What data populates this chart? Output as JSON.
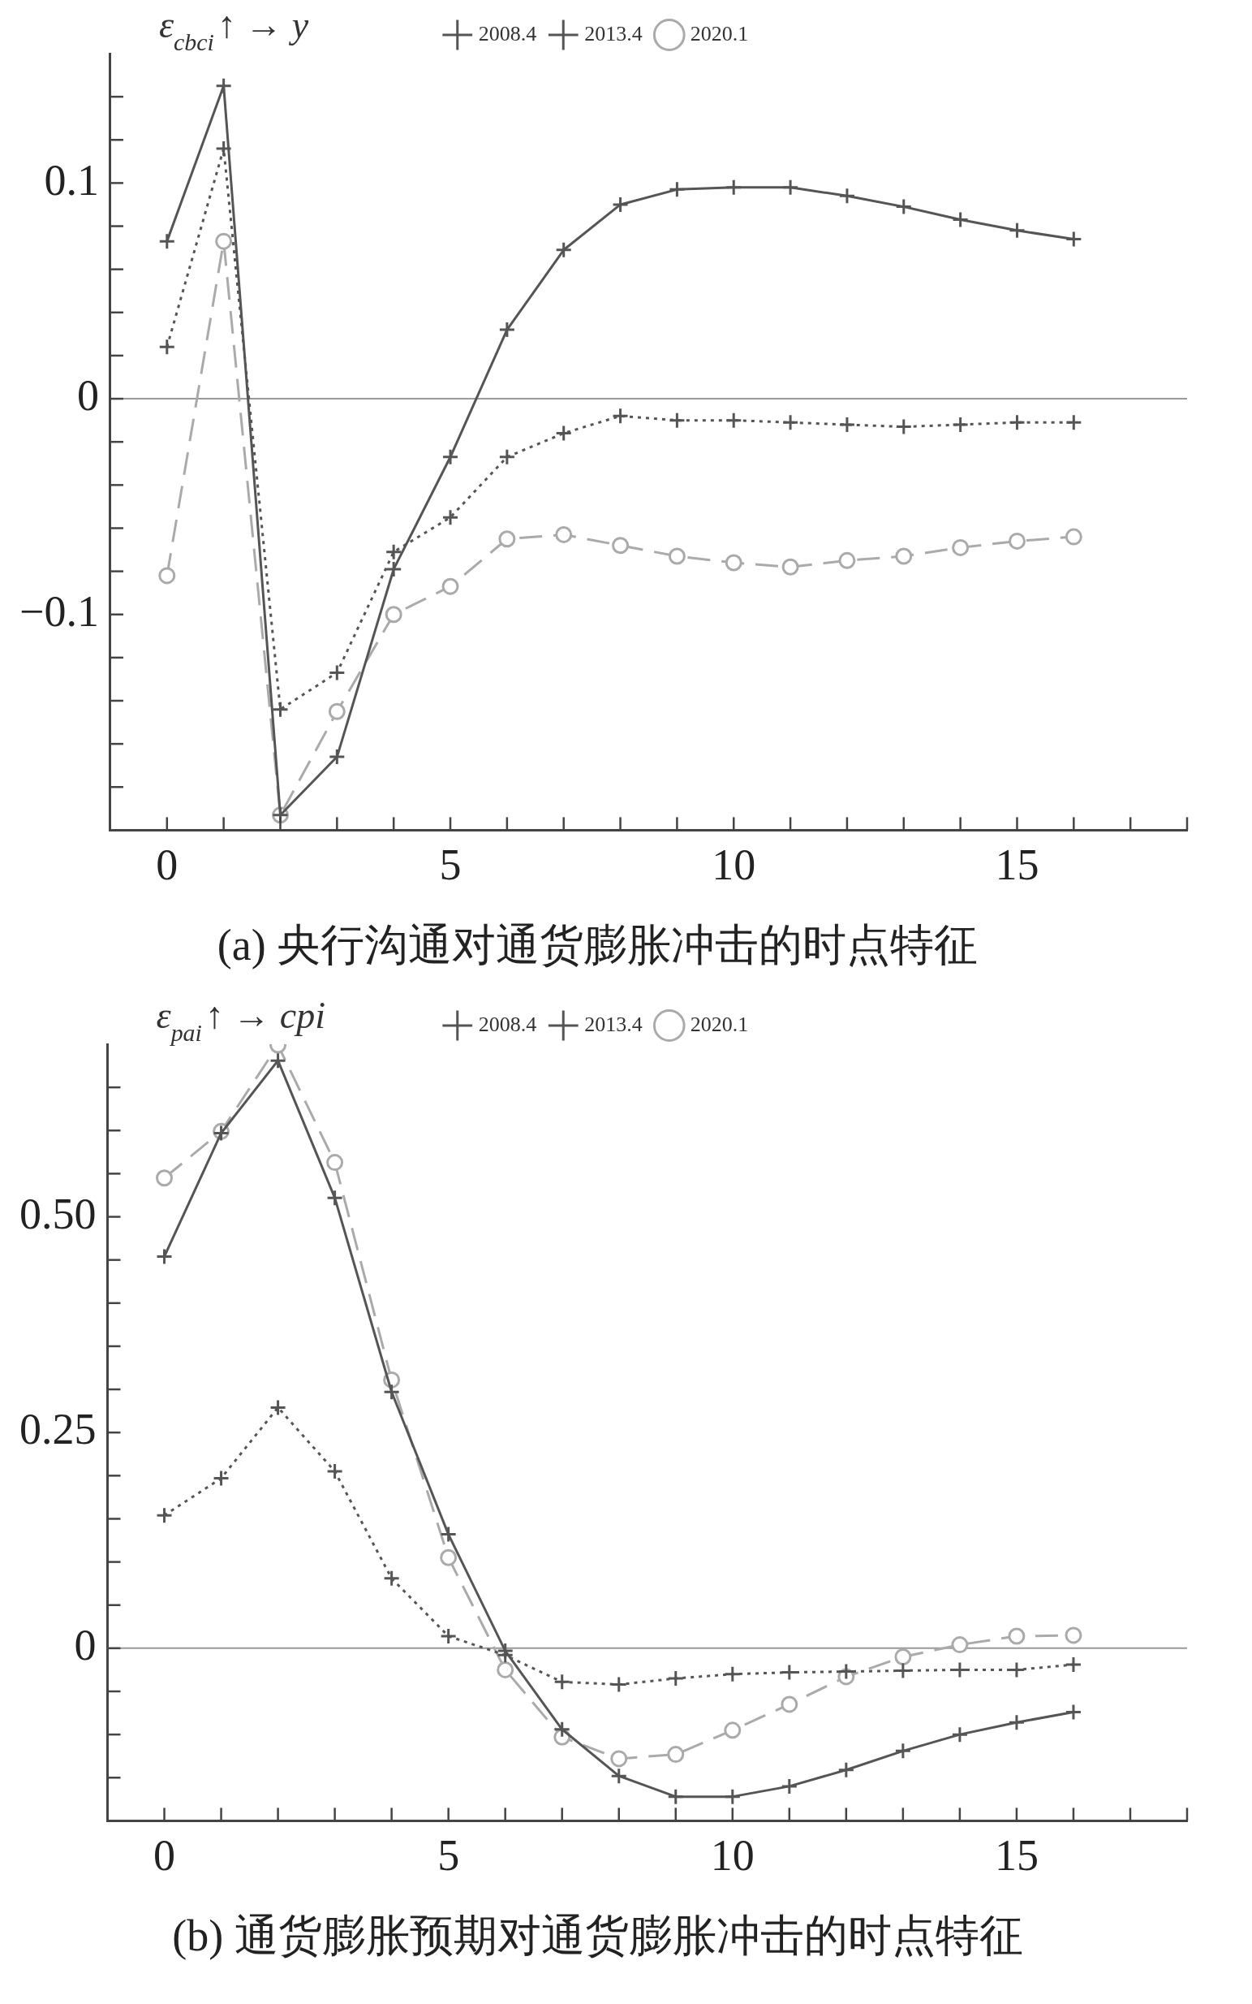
{
  "chart_data": [
    {
      "type": "line",
      "title": "(a) 央行沟通对通货膨胀冲击的时点特征",
      "annotations": [
        "ε$_{cbci}$↑ → y"
      ],
      "x": [
        0,
        1,
        2,
        3,
        4,
        5,
        6,
        7,
        8,
        9,
        10,
        11,
        12,
        13,
        14,
        15,
        16
      ],
      "series": [
        {
          "name": "2008.4",
          "color": "#555555",
          "marker": "cross",
          "line_style": "solid",
          "values": [
            0.073,
            0.145,
            -0.193,
            -0.166,
            -0.079,
            -0.027,
            0.032,
            0.069,
            0.09,
            0.097,
            0.098,
            0.098,
            0.094,
            0.089,
            0.083,
            0.078,
            0.074
          ]
        },
        {
          "name": "2013.4",
          "color": "#555555",
          "marker": "cross",
          "line_style": "dotted",
          "values": [
            0.024,
            0.116,
            -0.144,
            -0.127,
            -0.071,
            -0.055,
            -0.027,
            -0.016,
            -0.008,
            -0.01,
            -0.01,
            -0.011,
            -0.012,
            -0.013,
            -0.012,
            -0.011,
            -0.011
          ]
        },
        {
          "name": "2020.1",
          "color": "#aaaaaa",
          "marker": "circle",
          "line_style": "dashed",
          "values": [
            -0.082,
            0.073,
            -0.193,
            -0.145,
            -0.1,
            -0.087,
            -0.065,
            -0.063,
            -0.068,
            -0.073,
            -0.076,
            -0.078,
            -0.075,
            -0.073,
            -0.069,
            -0.066,
            -0.064
          ]
        }
      ],
      "xlim": [
        -1,
        18
      ],
      "ylim": [
        -0.2,
        0.16
      ],
      "xticks": [
        0,
        {
          "value": 1,
          "label": null
        },
        {
          "value": 2,
          "label": null
        },
        {
          "value": 3,
          "label": null
        },
        {
          "value": 4,
          "label": null
        },
        5,
        {
          "value": 6,
          "label": null
        },
        {
          "value": 7,
          "label": null
        },
        {
          "value": 8,
          "label": null
        },
        {
          "value": 9,
          "label": null
        },
        10,
        {
          "value": 11,
          "label": null
        },
        {
          "value": 12,
          "label": null
        },
        {
          "value": 13,
          "label": null
        },
        {
          "value": 14,
          "label": null
        },
        15,
        {
          "value": 16,
          "label": null
        },
        {
          "value": 17,
          "label": null
        },
        {
          "value": 18,
          "label": null
        }
      ],
      "yticks": [
        {
          "value": -0.18,
          "label": null
        },
        {
          "value": -0.16,
          "label": null
        },
        {
          "value": -0.14,
          "label": null
        },
        {
          "value": -0.12,
          "label": null
        },
        {
          "value": -0.1,
          "label": "−0.1"
        },
        {
          "value": -0.08,
          "label": null
        },
        {
          "value": -0.06,
          "label": null
        },
        {
          "value": -0.04,
          "label": null
        },
        {
          "value": -0.02,
          "label": null
        },
        {
          "value": 0,
          "label": "0"
        },
        {
          "value": 0.02,
          "label": null
        },
        {
          "value": 0.04,
          "label": null
        },
        {
          "value": 0.06,
          "label": null
        },
        {
          "value": 0.08,
          "label": null
        },
        {
          "value": 0.1,
          "label": "0.1"
        },
        {
          "value": 0.12,
          "label": null
        },
        {
          "value": 0.14,
          "label": null
        }
      ],
      "ref_lines": [
        {
          "axis": "y",
          "value": 0,
          "color": "#999999"
        }
      ],
      "grid": false,
      "legend": "top"
    },
    {
      "type": "line",
      "title": "(b) 通货膨胀预期对通货膨胀冲击的时点特征",
      "annotations": [
        "ε$_{pai}$↑ → cpi"
      ],
      "x": [
        0,
        1,
        2,
        3,
        4,
        5,
        6,
        7,
        8,
        9,
        10,
        11,
        12,
        13,
        14,
        15,
        16
      ],
      "series": [
        {
          "name": "2008.4",
          "color": "#555555",
          "marker": "cross",
          "line_style": "solid",
          "values": [
            0.454,
            0.597,
            0.681,
            0.522,
            0.297,
            0.132,
            -0.003,
            -0.094,
            -0.148,
            -0.172,
            -0.172,
            -0.16,
            -0.141,
            -0.119,
            -0.1,
            -0.086,
            -0.074
          ]
        },
        {
          "name": "2013.4",
          "color": "#555555",
          "marker": "cross",
          "line_style": "dotted",
          "values": [
            0.154,
            0.197,
            0.279,
            0.205,
            0.081,
            0.014,
            -0.008,
            -0.039,
            -0.042,
            -0.035,
            -0.03,
            -0.028,
            -0.027,
            -0.026,
            -0.025,
            -0.025,
            -0.019
          ]
        },
        {
          "name": "2020.1",
          "color": "#aaaaaa",
          "marker": "circle",
          "line_style": "dashed",
          "values": [
            0.545,
            0.599,
            0.699,
            0.563,
            0.311,
            0.105,
            -0.025,
            -0.103,
            -0.128,
            -0.123,
            -0.095,
            -0.065,
            -0.033,
            -0.01,
            0.004,
            0.014,
            0.015
          ]
        }
      ],
      "xlim": [
        -1,
        18
      ],
      "ylim": [
        -0.2,
        0.7
      ],
      "xticks": [
        0,
        {
          "value": 1,
          "label": null
        },
        {
          "value": 2,
          "label": null
        },
        {
          "value": 3,
          "label": null
        },
        {
          "value": 4,
          "label": null
        },
        5,
        {
          "value": 6,
          "label": null
        },
        {
          "value": 7,
          "label": null
        },
        {
          "value": 8,
          "label": null
        },
        {
          "value": 9,
          "label": null
        },
        10,
        {
          "value": 11,
          "label": null
        },
        {
          "value": 12,
          "label": null
        },
        {
          "value": 13,
          "label": null
        },
        {
          "value": 14,
          "label": null
        },
        15,
        {
          "value": 16,
          "label": null
        },
        {
          "value": 17,
          "label": null
        },
        {
          "value": 18,
          "label": null
        }
      ],
      "yticks": [
        {
          "value": -0.15,
          "label": null
        },
        {
          "value": -0.1,
          "label": null
        },
        {
          "value": -0.05,
          "label": null
        },
        {
          "value": 0,
          "label": "0"
        },
        {
          "value": 0.05,
          "label": null
        },
        {
          "value": 0.1,
          "label": null
        },
        {
          "value": 0.15,
          "label": null
        },
        {
          "value": 0.2,
          "label": null
        },
        {
          "value": 0.25,
          "label": "0.25"
        },
        {
          "value": 0.3,
          "label": null
        },
        {
          "value": 0.35,
          "label": null
        },
        {
          "value": 0.4,
          "label": null
        },
        {
          "value": 0.45,
          "label": null
        },
        {
          "value": 0.5,
          "label": "0.50"
        },
        {
          "value": 0.55,
          "label": null
        },
        {
          "value": 0.6,
          "label": null
        },
        {
          "value": 0.65,
          "label": null
        }
      ],
      "ref_lines": [
        {
          "axis": "y",
          "value": 0,
          "color": "#999999"
        }
      ],
      "grid": false,
      "legend": "top"
    }
  ]
}
